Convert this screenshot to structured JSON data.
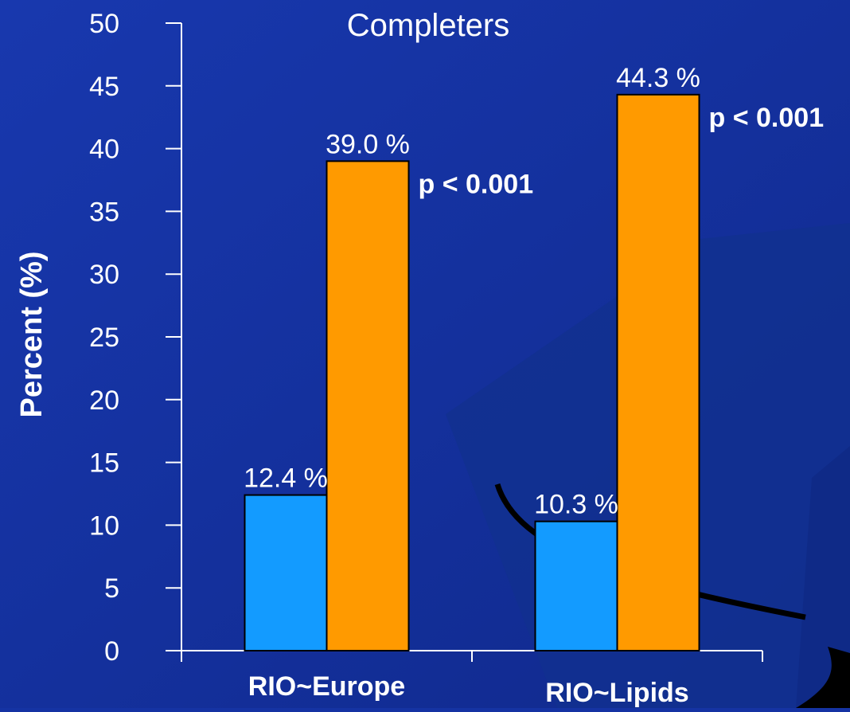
{
  "chart_data": {
    "type": "bar",
    "title": "Completers",
    "ylabel": "Percent (%)",
    "xlabel": "",
    "ylim": [
      0,
      50
    ],
    "yticks": [
      0,
      5,
      10,
      15,
      20,
      25,
      30,
      35,
      40,
      45,
      50
    ],
    "grid": false,
    "legend": "none",
    "categories": [
      "RIO~Europe",
      "RIO~Lipids"
    ],
    "series": [
      {
        "values": [
          12.4,
          10.3
        ],
        "labels": [
          "12.4 %",
          "10.3 %"
        ],
        "color": "#139bff"
      },
      {
        "values": [
          39.0,
          44.3
        ],
        "labels": [
          "39.0 %",
          "44.3 %"
        ],
        "color": "#ff9a00"
      }
    ],
    "annotations": [
      "p < 0.001",
      "p < 0.001"
    ]
  },
  "colors": {
    "background": "#1533a3",
    "background_shape": "#123096",
    "axis": "#ffffff",
    "bar_outline": "#000000",
    "text": "#ffffff"
  }
}
